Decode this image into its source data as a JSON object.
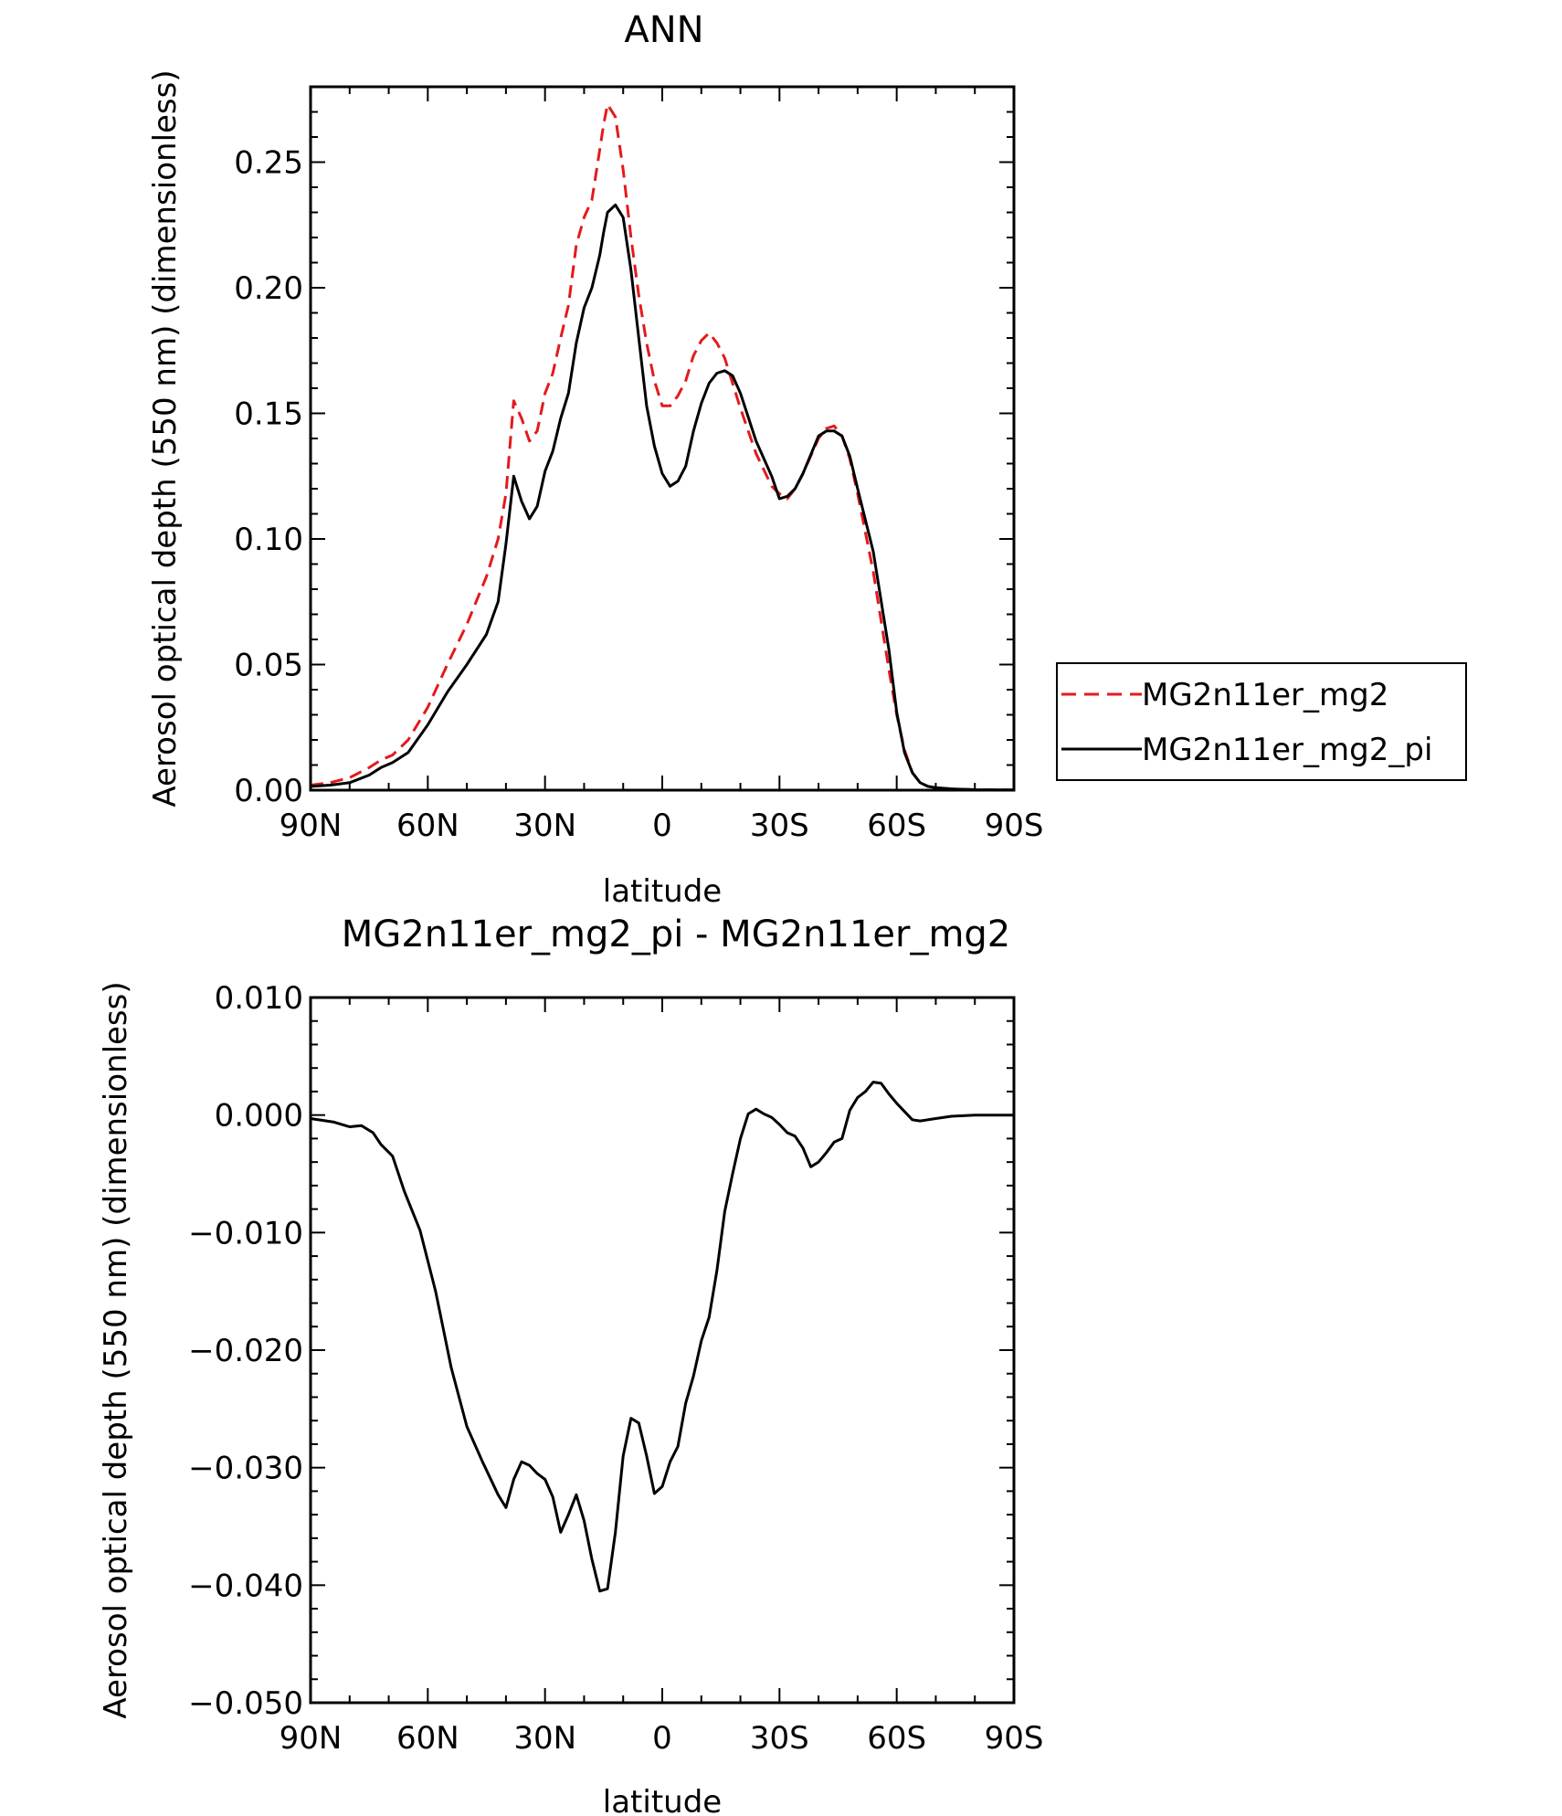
{
  "chart_data": [
    {
      "type": "line",
      "title": "ANN",
      "xlabel": "latitude",
      "ylabel": "Aerosol optical depth (550 nm) (dimensionless)",
      "xlim": [
        90,
        -90
      ],
      "ylim": [
        0.0,
        0.28
      ],
      "xticks": [
        90,
        60,
        30,
        0,
        -30,
        -60,
        -90
      ],
      "xtick_labels": [
        "90N",
        "60N",
        "30N",
        "0",
        "30S",
        "60S",
        "90S"
      ],
      "yticks": [
        0.0,
        0.05,
        0.1,
        0.15,
        0.2,
        0.25
      ],
      "ytick_labels": [
        "0.00",
        "0.05",
        "0.10",
        "0.15",
        "0.20",
        "0.25"
      ],
      "legend_position": "right",
      "grid": false,
      "series": [
        {
          "name": "MG2n11er_mg2",
          "color": "#e41a1c",
          "dash": "dashed",
          "x": [
            90,
            85,
            80,
            75,
            72,
            69,
            65,
            60,
            55,
            50,
            45,
            42,
            40,
            38,
            36,
            34,
            32,
            30,
            28,
            26,
            24,
            22,
            20,
            18,
            16,
            15,
            14,
            12,
            10,
            8,
            6,
            4,
            2,
            0,
            -2,
            -4,
            -6,
            -8,
            -10,
            -12,
            -14,
            -16,
            -18,
            -20,
            -24,
            -28,
            -30,
            -32,
            -34,
            -36,
            -40,
            -42,
            -44,
            -46,
            -48,
            -50,
            -54,
            -58,
            -60,
            -62,
            -64,
            -66,
            -68,
            -70,
            -74,
            -80,
            -90
          ],
          "y": [
            0.002,
            0.003,
            0.005,
            0.009,
            0.012,
            0.014,
            0.02,
            0.033,
            0.05,
            0.066,
            0.085,
            0.1,
            0.118,
            0.155,
            0.148,
            0.139,
            0.143,
            0.158,
            0.166,
            0.18,
            0.193,
            0.217,
            0.228,
            0.235,
            0.255,
            0.265,
            0.273,
            0.268,
            0.247,
            0.22,
            0.197,
            0.178,
            0.163,
            0.153,
            0.153,
            0.157,
            0.163,
            0.173,
            0.179,
            0.182,
            0.178,
            0.172,
            0.162,
            0.152,
            0.134,
            0.121,
            0.118,
            0.116,
            0.12,
            0.126,
            0.14,
            0.144,
            0.145,
            0.141,
            0.132,
            0.118,
            0.087,
            0.048,
            0.03,
            0.016,
            0.007,
            0.003,
            0.0015,
            0.001,
            0.0005,
            0.0002,
            0.0001
          ]
        },
        {
          "name": "MG2n11er_mg2_pi",
          "color": "#000000",
          "dash": "solid",
          "x": [
            90,
            85,
            80,
            75,
            72,
            69,
            65,
            60,
            55,
            50,
            45,
            42,
            40,
            38,
            36,
            34,
            32,
            30,
            28,
            26,
            24,
            22,
            20,
            18,
            16,
            15,
            14,
            12,
            10,
            8,
            6,
            4,
            2,
            0,
            -2,
            -4,
            -6,
            -8,
            -10,
            -12,
            -14,
            -16,
            -18,
            -20,
            -24,
            -28,
            -30,
            -32,
            -34,
            -36,
            -40,
            -42,
            -44,
            -46,
            -48,
            -50,
            -54,
            -58,
            -60,
            -62,
            -64,
            -66,
            -68,
            -70,
            -74,
            -80,
            -90
          ],
          "y": [
            0.0015,
            0.002,
            0.003,
            0.006,
            0.009,
            0.011,
            0.015,
            0.026,
            0.039,
            0.05,
            0.062,
            0.075,
            0.098,
            0.125,
            0.115,
            0.108,
            0.113,
            0.127,
            0.135,
            0.148,
            0.158,
            0.178,
            0.192,
            0.2,
            0.213,
            0.222,
            0.23,
            0.233,
            0.228,
            0.207,
            0.18,
            0.153,
            0.137,
            0.126,
            0.121,
            0.123,
            0.129,
            0.143,
            0.154,
            0.162,
            0.166,
            0.167,
            0.165,
            0.158,
            0.139,
            0.125,
            0.116,
            0.117,
            0.12,
            0.126,
            0.141,
            0.143,
            0.143,
            0.141,
            0.133,
            0.12,
            0.095,
            0.056,
            0.031,
            0.015,
            0.007,
            0.003,
            0.0015,
            0.001,
            0.0005,
            0.0002,
            0.0001
          ]
        }
      ]
    },
    {
      "type": "line",
      "title": "MG2n11er_mg2_pi - MG2n11er_mg2",
      "xlabel": "latitude",
      "ylabel": "Aerosol optical depth (550 nm) (dimensionless)",
      "xlim": [
        90,
        -90
      ],
      "ylim": [
        -0.05,
        0.01
      ],
      "xticks": [
        90,
        60,
        30,
        0,
        -30,
        -60,
        -90
      ],
      "xtick_labels": [
        "90N",
        "60N",
        "30N",
        "0",
        "30S",
        "60S",
        "90S"
      ],
      "yticks": [
        -0.05,
        -0.04,
        -0.03,
        -0.02,
        -0.01,
        0.0,
        0.01
      ],
      "ytick_labels": [
        "−0.050",
        "−0.040",
        "−0.030",
        "−0.020",
        "−0.010",
        "0.000",
        "0.010"
      ],
      "grid": false,
      "series": [
        {
          "color": "#000000",
          "dash": "solid",
          "x": [
            90,
            84,
            80,
            77,
            74,
            72,
            69,
            66,
            62,
            58,
            54,
            50,
            46,
            42,
            40,
            38,
            36,
            34,
            32,
            30,
            28,
            26,
            24,
            22,
            20,
            18,
            16,
            14,
            12,
            10,
            8,
            6,
            4,
            2,
            0,
            -2,
            -4,
            -6,
            -8,
            -10,
            -12,
            -14,
            -16,
            -18,
            -20,
            -22,
            -24,
            -26,
            -28,
            -30,
            -32,
            -34,
            -36,
            -38,
            -40,
            -42,
            -44,
            -46,
            -48,
            -50,
            -52,
            -54,
            -56,
            -58,
            -60,
            -62,
            -64,
            -66,
            -68,
            -70,
            -74,
            -80,
            -90
          ],
          "y": [
            -0.0003,
            -0.0006,
            -0.001,
            -0.0009,
            -0.0015,
            -0.0025,
            -0.0035,
            -0.0065,
            -0.0098,
            -0.015,
            -0.0215,
            -0.0265,
            -0.0295,
            -0.0323,
            -0.0334,
            -0.031,
            -0.0295,
            -0.0298,
            -0.0305,
            -0.031,
            -0.0325,
            -0.0355,
            -0.034,
            -0.0323,
            -0.0345,
            -0.0378,
            -0.0405,
            -0.0403,
            -0.0355,
            -0.029,
            -0.0258,
            -0.0262,
            -0.029,
            -0.0322,
            -0.0316,
            -0.0295,
            -0.0282,
            -0.0245,
            -0.0222,
            -0.0192,
            -0.0172,
            -0.0132,
            -0.0082,
            -0.005,
            -0.002,
            0.0001,
            0.0005,
            0.0001,
            -0.0002,
            -0.0008,
            -0.0015,
            -0.0018,
            -0.0028,
            -0.0044,
            -0.004,
            -0.0032,
            -0.0023,
            -0.002,
            0.0004,
            0.0015,
            0.002,
            0.0028,
            0.0027,
            0.0018,
            0.001,
            0.0003,
            -0.0004,
            -0.0005,
            -0.0004,
            -0.0003,
            -0.0001,
            0.0,
            0.0
          ]
        }
      ]
    }
  ]
}
